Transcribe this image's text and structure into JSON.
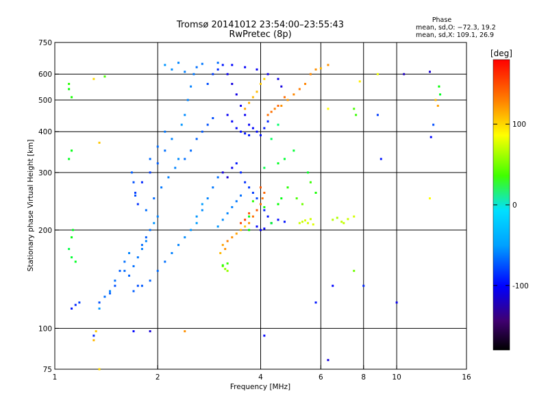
{
  "chart_data": {
    "type": "scatter",
    "title": "Tromsø 20141012 23:54:00–23:55:43",
    "subtitle": "RwPretec (8p)",
    "xlabel": "Frequency [MHz]",
    "ylabel": "Stationary phase Virtual Height [km]",
    "x_scale": "log",
    "y_scale": "log",
    "xlim": [
      1,
      16
    ],
    "ylim": [
      75,
      750
    ],
    "x_ticks": [
      1,
      2,
      4,
      6,
      8,
      10,
      16
    ],
    "y_ticks": [
      75,
      100,
      200,
      300,
      400,
      500,
      600,
      750
    ],
    "x_grid": [
      2,
      4,
      6,
      8,
      10
    ],
    "y_grid": [
      100,
      200,
      300,
      400,
      500,
      600
    ],
    "grid": true,
    "stats": {
      "heading": "Phase",
      "line_o": "mean, sd,O: −72.3, 19.2",
      "line_x": "mean, sd,X: 109.1, 26.9"
    },
    "colorbar": {
      "label": "[deg]",
      "range": [
        -180,
        180
      ],
      "ticks": [
        100,
        0,
        -100
      ],
      "colormap": "rainbow"
    },
    "series": [
      {
        "points": [
          [
            1.12,
            115,
            -95
          ],
          [
            1.15,
            118,
            -90
          ],
          [
            1.18,
            120,
            -85
          ],
          [
            1.35,
            115,
            -60
          ],
          [
            1.4,
            125,
            -70
          ],
          [
            1.45,
            130,
            -65
          ],
          [
            1.5,
            140,
            -70
          ],
          [
            1.55,
            150,
            -75
          ],
          [
            1.6,
            160,
            -70
          ],
          [
            1.65,
            170,
            -65
          ],
          [
            1.7,
            130,
            -75
          ],
          [
            1.75,
            135,
            -80
          ],
          [
            1.8,
            180,
            -70
          ],
          [
            1.85,
            190,
            -75
          ],
          [
            1.9,
            200,
            -70
          ],
          [
            1.95,
            210,
            -60
          ],
          [
            2.0,
            220,
            -65
          ],
          [
            1.72,
            260,
            -85
          ],
          [
            1.8,
            280,
            -90
          ],
          [
            1.9,
            300,
            -85
          ],
          [
            2.0,
            320,
            -75
          ],
          [
            2.1,
            350,
            -70
          ],
          [
            2.2,
            380,
            -65
          ],
          [
            1.75,
            240,
            -88
          ],
          [
            1.85,
            230,
            -70
          ],
          [
            1.95,
            250,
            -72
          ],
          [
            2.05,
            270,
            -68
          ],
          [
            2.15,
            290,
            -66
          ],
          [
            2.25,
            310,
            -64
          ],
          [
            2.3,
            330,
            -62
          ],
          [
            2.35,
            420,
            -60
          ],
          [
            2.4,
            450,
            -62
          ],
          [
            2.45,
            500,
            -64
          ],
          [
            2.5,
            550,
            -66
          ],
          [
            2.55,
            600,
            -68
          ],
          [
            2.6,
            630,
            -70
          ],
          [
            2.5,
            200,
            -60
          ],
          [
            2.6,
            210,
            -58
          ],
          [
            2.7,
            230,
            -62
          ],
          [
            2.8,
            250,
            -65
          ],
          [
            2.9,
            270,
            -68
          ],
          [
            3.0,
            290,
            -70
          ],
          [
            2.2,
            170,
            -66
          ],
          [
            2.3,
            180,
            -64
          ],
          [
            2.4,
            190,
            -62
          ],
          [
            2.6,
            220,
            -60
          ],
          [
            2.7,
            240,
            -58
          ],
          [
            2.1,
            160,
            -70
          ],
          [
            2.0,
            150,
            -72
          ],
          [
            1.9,
            140,
            -74
          ],
          [
            1.8,
            135,
            -76
          ],
          [
            2.8,
            560,
            -80
          ],
          [
            2.9,
            600,
            -85
          ],
          [
            3.0,
            620,
            -90
          ],
          [
            3.1,
            640,
            -95
          ],
          [
            3.2,
            600,
            -105
          ],
          [
            3.3,
            560,
            -110
          ],
          [
            3.4,
            520,
            -108
          ],
          [
            3.5,
            480,
            -106
          ],
          [
            3.6,
            450,
            -104
          ],
          [
            3.7,
            420,
            -102
          ],
          [
            3.8,
            410,
            -100
          ],
          [
            3.9,
            400,
            -98
          ],
          [
            4.0,
            390,
            -96
          ],
          [
            4.1,
            410,
            -94
          ],
          [
            4.2,
            430,
            -92
          ],
          [
            3.2,
            450,
            -104
          ],
          [
            3.3,
            430,
            -102
          ],
          [
            3.4,
            410,
            -100
          ],
          [
            3.5,
            400,
            -98
          ],
          [
            3.6,
            395,
            -96
          ],
          [
            3.7,
            390,
            -95
          ],
          [
            3.1,
            300,
            -110
          ],
          [
            3.2,
            290,
            -115
          ],
          [
            3.3,
            310,
            -105
          ],
          [
            3.4,
            320,
            -95
          ],
          [
            3.5,
            300,
            -90
          ],
          [
            3.6,
            280,
            -88
          ],
          [
            3.7,
            270,
            -86
          ],
          [
            3.8,
            260,
            -84
          ],
          [
            3.9,
            250,
            -82
          ],
          [
            4.0,
            240,
            -80
          ],
          [
            4.1,
            230,
            -90
          ],
          [
            4.2,
            220,
            -95
          ],
          [
            3.9,
            205,
            -100
          ],
          [
            4.0,
            200,
            -105
          ],
          [
            4.1,
            202,
            -103
          ],
          [
            4.3,
            210,
            -100
          ],
          [
            4.5,
            215,
            -98
          ],
          [
            4.7,
            212,
            -96
          ],
          [
            2.1,
            640,
            -60
          ],
          [
            2.2,
            620,
            -62
          ],
          [
            2.3,
            650,
            -64
          ],
          [
            2.4,
            610,
            -66
          ],
          [
            2.7,
            645,
            -68
          ],
          [
            3.0,
            650,
            -70
          ],
          [
            3.3,
            640,
            -100
          ],
          [
            3.6,
            630,
            -102
          ],
          [
            3.9,
            620,
            -104
          ],
          [
            4.2,
            600,
            -106
          ],
          [
            4.5,
            580,
            -108
          ],
          [
            4.6,
            550,
            -110
          ],
          [
            1.68,
            300,
            -75
          ],
          [
            1.7,
            280,
            -78
          ],
          [
            1.72,
            255,
            -80
          ],
          [
            1.9,
            330,
            -72
          ],
          [
            2.0,
            360,
            -70
          ],
          [
            2.1,
            400,
            -68
          ],
          [
            2.4,
            330,
            -70
          ],
          [
            2.5,
            350,
            -72
          ],
          [
            2.6,
            380,
            -74
          ],
          [
            2.7,
            400,
            -76
          ],
          [
            2.8,
            420,
            -78
          ],
          [
            2.9,
            440,
            -80
          ],
          [
            1.6,
            150,
            -72
          ],
          [
            1.65,
            145,
            -74
          ],
          [
            1.7,
            155,
            -70
          ],
          [
            1.75,
            165,
            -68
          ],
          [
            1.8,
            175,
            -66
          ],
          [
            1.85,
            185,
            -64
          ],
          [
            3.0,
            205,
            -60
          ],
          [
            3.1,
            215,
            -62
          ],
          [
            3.2,
            225,
            -64
          ],
          [
            3.3,
            235,
            -66
          ],
          [
            3.4,
            245,
            -68
          ],
          [
            3.5,
            255,
            -70
          ],
          [
            10.5,
            600,
            -120
          ],
          [
            10.0,
            120,
            -105
          ],
          [
            12.5,
            610,
            -115
          ],
          [
            8.8,
            450,
            -85
          ],
          [
            9.0,
            330,
            -95
          ],
          [
            6.3,
            80,
            -110
          ],
          [
            6.5,
            135,
            -100
          ],
          [
            8.0,
            135,
            -90
          ],
          [
            5.8,
            120,
            -95
          ],
          [
            1.3,
            95,
            -90
          ],
          [
            1.7,
            98,
            -100
          ],
          [
            1.9,
            98,
            -115
          ],
          [
            1.35,
            120,
            -80
          ],
          [
            1.45,
            128,
            -75
          ],
          [
            1.5,
            135,
            -78
          ],
          [
            4.1,
            95,
            -100
          ],
          [
            12.8,
            420,
            -80
          ],
          [
            12.6,
            385,
            -100
          ]
        ]
      },
      {
        "points": [
          [
            3.05,
            170,
            130
          ],
          [
            3.1,
            180,
            135
          ],
          [
            3.15,
            175,
            140
          ],
          [
            3.2,
            185,
            145
          ],
          [
            3.3,
            190,
            140
          ],
          [
            3.4,
            195,
            135
          ],
          [
            3.5,
            200,
            130
          ],
          [
            3.6,
            205,
            125
          ],
          [
            3.7,
            210,
            140
          ],
          [
            3.8,
            220,
            150
          ],
          [
            3.9,
            230,
            155
          ],
          [
            4.0,
            240,
            150
          ],
          [
            4.05,
            250,
            148
          ],
          [
            4.1,
            260,
            152
          ],
          [
            4.0,
            270,
            156
          ],
          [
            3.5,
            210,
            160
          ],
          [
            3.6,
            215,
            162
          ],
          [
            3.7,
            225,
            158
          ],
          [
            4.2,
            450,
            150
          ],
          [
            4.4,
            470,
            145
          ],
          [
            4.6,
            480,
            140
          ],
          [
            4.8,
            500,
            138
          ],
          [
            5.0,
            520,
            142
          ],
          [
            5.2,
            540,
            146
          ],
          [
            5.4,
            560,
            144
          ],
          [
            5.6,
            600,
            142
          ],
          [
            5.8,
            620,
            140
          ],
          [
            4.3,
            460,
            150
          ],
          [
            4.5,
            480,
            152
          ],
          [
            4.7,
            510,
            150
          ],
          [
            3.8,
            510,
            130
          ],
          [
            3.9,
            530,
            128
          ],
          [
            4.0,
            560,
            125
          ],
          [
            4.1,
            580,
            120
          ],
          [
            3.7,
            490,
            132
          ],
          [
            3.6,
            470,
            135
          ],
          [
            5.3,
            212,
            95
          ],
          [
            5.4,
            214,
            100
          ],
          [
            5.5,
            210,
            98
          ],
          [
            5.6,
            216,
            96
          ],
          [
            5.7,
            208,
            102
          ],
          [
            5.2,
            210,
            95
          ],
          [
            6.5,
            215,
            90
          ],
          [
            6.7,
            218,
            88
          ],
          [
            6.9,
            212,
            92
          ],
          [
            7.0,
            210,
            94
          ],
          [
            7.2,
            216,
            96
          ],
          [
            7.5,
            220,
            98
          ],
          [
            3.1,
            155,
            75
          ],
          [
            3.15,
            152,
            78
          ],
          [
            3.2,
            150,
            80
          ],
          [
            1.3,
            92,
            130
          ],
          [
            1.32,
            98,
            125
          ],
          [
            1.35,
            75,
            120
          ],
          [
            2.4,
            98,
            140
          ],
          [
            1.3,
            580,
            120
          ],
          [
            1.35,
            370,
            125
          ],
          [
            6.3,
            470,
            110
          ],
          [
            7.8,
            570,
            115
          ],
          [
            8.8,
            600,
            105
          ],
          [
            13.0,
            500,
            130
          ],
          [
            13.2,
            480,
            135
          ],
          [
            12.5,
            250,
            110
          ],
          [
            6.3,
            640,
            140
          ],
          [
            6.0,
            625,
            130
          ],
          [
            7.5,
            150,
            70
          ]
        ]
      },
      {
        "points": [
          [
            1.1,
            540,
            40
          ],
          [
            1.1,
            560,
            50
          ],
          [
            1.12,
            510,
            45
          ],
          [
            1.1,
            330,
            30
          ],
          [
            1.12,
            350,
            35
          ],
          [
            1.1,
            175,
            20
          ],
          [
            1.12,
            165,
            25
          ],
          [
            1.15,
            160,
            30
          ],
          [
            1.12,
            190,
            35
          ],
          [
            1.13,
            200,
            30
          ],
          [
            3.7,
            200,
            40
          ],
          [
            3.7,
            220,
            35
          ],
          [
            3.8,
            245,
            50
          ],
          [
            4.1,
            235,
            45
          ],
          [
            4.3,
            210,
            30
          ],
          [
            4.5,
            240,
            40
          ],
          [
            4.6,
            250,
            35
          ],
          [
            4.8,
            270,
            50
          ],
          [
            5.1,
            250,
            60
          ],
          [
            5.3,
            240,
            70
          ],
          [
            5.6,
            280,
            55
          ],
          [
            5.8,
            260,
            45
          ],
          [
            4.5,
            320,
            30
          ],
          [
            4.7,
            330,
            25
          ],
          [
            7.5,
            470,
            60
          ],
          [
            7.6,
            450,
            55
          ],
          [
            13.3,
            550,
            40
          ],
          [
            13.4,
            520,
            30
          ],
          [
            3.1,
            156,
            50
          ],
          [
            3.2,
            158,
            55
          ],
          [
            1.4,
            590,
            60
          ],
          [
            4.1,
            310,
            20
          ],
          [
            4.3,
            380,
            15
          ],
          [
            4.5,
            420,
            10
          ],
          [
            5.0,
            350,
            25
          ],
          [
            5.5,
            300,
            30
          ]
        ]
      }
    ]
  }
}
